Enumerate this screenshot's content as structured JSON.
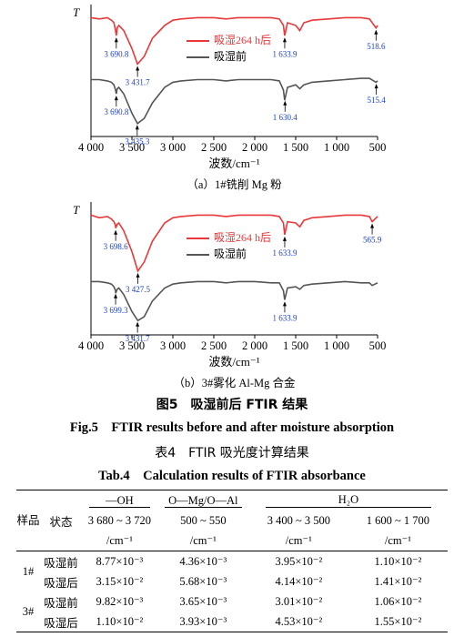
{
  "chart_data": [
    {
      "type": "line",
      "y_label": "T",
      "x_label": "波数/cm⁻¹",
      "caption": "（a）1#铣削 Mg 粉",
      "x": [
        4000,
        3900,
        3800,
        3750,
        3720,
        3700,
        3690.8,
        3680,
        3660,
        3600,
        3500,
        3431.7,
        3350,
        3250,
        3100,
        3000,
        2900,
        2700,
        2500,
        2350,
        2200,
        2000,
        1800,
        1700,
        1650,
        1633.9,
        1600,
        1500,
        1450,
        1400,
        1300,
        1100,
        900,
        700,
        600,
        518.6,
        500
      ],
      "series": [
        {
          "name": "吸湿264 h后",
          "color": "#e8383a",
          "values": [
            92,
            91,
            92,
            90,
            88,
            82,
            78,
            84,
            86,
            82,
            68,
            56,
            62,
            76,
            86,
            90,
            91,
            92,
            92,
            91,
            92,
            92,
            92,
            91,
            86,
            78,
            88,
            86,
            82,
            88,
            90,
            91,
            92,
            92,
            91,
            84,
            86
          ]
        },
        {
          "name": "吸湿前",
          "color": "#555555",
          "values": [
            44,
            44,
            43,
            42,
            40,
            36,
            33,
            37,
            38,
            33,
            18,
            10,
            14,
            26,
            38,
            42,
            43,
            44,
            44,
            43,
            44,
            44,
            44,
            43,
            36,
            28,
            38,
            40,
            37,
            40,
            42,
            43,
            44,
            45,
            45,
            42,
            43
          ]
        }
      ],
      "annotations": [
        {
          "label": "3 690.8",
          "x": 3690.8,
          "series": 0
        },
        {
          "label": "3 431.7",
          "x": 3431.7,
          "series": 0
        },
        {
          "label": "1 633.9",
          "x": 1633.9,
          "series": 0
        },
        {
          "label": "518.6",
          "x": 518.6,
          "series": 0
        },
        {
          "label": "3 690.8",
          "x": 3690.8,
          "series": 1
        },
        {
          "label": "3 435.3",
          "x": 3435.3,
          "series": 1
        },
        {
          "label": "1 630.4",
          "x": 1630.4,
          "series": 1
        },
        {
          "label": "515.4",
          "x": 515.4,
          "series": 1
        }
      ],
      "xlim": [
        4000,
        500
      ],
      "ylim": [
        0,
        100
      ],
      "xticks": [
        {
          "value": 4000,
          "label": "4 000"
        },
        {
          "value": 3500,
          "label": "3 500"
        },
        {
          "value": 3000,
          "label": "3 000"
        },
        {
          "value": 2500,
          "label": "2 500"
        },
        {
          "value": 2000,
          "label": "2 000"
        },
        {
          "value": 1500,
          "label": "1 500"
        },
        {
          "value": 1000,
          "label": "1 000"
        },
        500
      ]
    },
    {
      "type": "line",
      "y_label": "T",
      "x_label": "波数/cm⁻¹",
      "caption": "（b）3#雾化 Al-Mg 合金",
      "x": [
        4000,
        3900,
        3800,
        3750,
        3720,
        3700,
        3698.6,
        3680,
        3660,
        3600,
        3500,
        3427.5,
        3350,
        3250,
        3100,
        3000,
        2900,
        2700,
        2500,
        2350,
        2200,
        2000,
        1800,
        1700,
        1650,
        1633.9,
        1600,
        1500,
        1450,
        1400,
        1300,
        1100,
        900,
        700,
        600,
        565.9,
        500
      ],
      "series": [
        {
          "name": "吸湿264 h后",
          "color": "#e8383a",
          "values": [
            92,
            90,
            91,
            89,
            87,
            84,
            82,
            85,
            86,
            80,
            64,
            49,
            56,
            72,
            86,
            90,
            91,
            92,
            92,
            91,
            92,
            92,
            92,
            91,
            86,
            77,
            87,
            86,
            83,
            88,
            90,
            91,
            92,
            92,
            91,
            87,
            91
          ]
        },
        {
          "name": "吸湿前",
          "color": "#555555",
          "values": [
            41,
            41,
            40,
            39,
            37,
            34,
            32,
            35,
            36,
            31,
            18,
            11,
            14,
            26,
            36,
            39,
            40,
            41,
            41,
            40,
            41,
            41,
            40,
            40,
            34,
            27,
            36,
            37,
            35,
            38,
            39,
            40,
            41,
            40,
            40,
            38,
            40
          ]
        }
      ],
      "annotations": [
        {
          "label": "3 698.6",
          "x": 3698.6,
          "series": 0
        },
        {
          "label": "3 427.5",
          "x": 3427.5,
          "series": 0
        },
        {
          "label": "1 633.9",
          "x": 1633.9,
          "series": 0
        },
        {
          "label": "565.9",
          "x": 565.9,
          "series": 0
        },
        {
          "label": "3 699.3",
          "x": 3699.3,
          "series": 1
        },
        {
          "label": "3 431.7",
          "x": 3431.7,
          "series": 1
        },
        {
          "label": "1 633.9",
          "x": 1633.9,
          "series": 1
        }
      ],
      "xlim": [
        4000,
        500
      ],
      "ylim": [
        0,
        100
      ],
      "xticks": [
        {
          "value": 4000,
          "label": "4 000"
        },
        {
          "value": 3500,
          "label": "3 500"
        },
        {
          "value": 3000,
          "label": "3 000"
        },
        {
          "value": 2500,
          "label": "2 500"
        },
        {
          "value": 2000,
          "label": "2 000"
        },
        {
          "value": 1500,
          "label": "1 500"
        },
        {
          "value": 1000,
          "label": "1 000"
        },
        500
      ]
    }
  ],
  "figure_caption": "图5　吸湿前后 FTIR 结果",
  "figure_caption_en": "Fig.5　FTIR results before and after moisture absorption",
  "table_title": "表4　FTIR 吸光度计算结果",
  "table_title_en": "Tab.4　Calculation results of FTIR absorbance",
  "table": {
    "header": [
      "样品",
      "状态"
    ],
    "groups": [
      "—OH",
      "O—Mg/O—Al",
      "H₂O"
    ],
    "ranges": [
      "3 680 ~ 3 720",
      "500 ~ 550",
      "3 400 ~ 3 500",
      "1 600 ~ 1 700"
    ],
    "unit": "/cm⁻¹",
    "rows": [
      [
        "1#",
        "吸湿前",
        "8.77×10⁻³",
        "4.36×10⁻³",
        "3.95×10⁻²",
        "1.10×10⁻²"
      ],
      [
        "1#",
        "吸湿后",
        "3.15×10⁻²",
        "5.68×10⁻³",
        "4.14×10⁻²",
        "1.41×10⁻²"
      ],
      [
        "3#",
        "吸湿前",
        "9.82×10⁻³",
        "3.65×10⁻³",
        "3.01×10⁻²",
        "1.06×10⁻²"
      ],
      [
        "3#",
        "吸湿后",
        "1.10×10⁻²",
        "3.93×10⁻³",
        "4.53×10⁻²",
        "1.55×10⁻²"
      ]
    ]
  }
}
